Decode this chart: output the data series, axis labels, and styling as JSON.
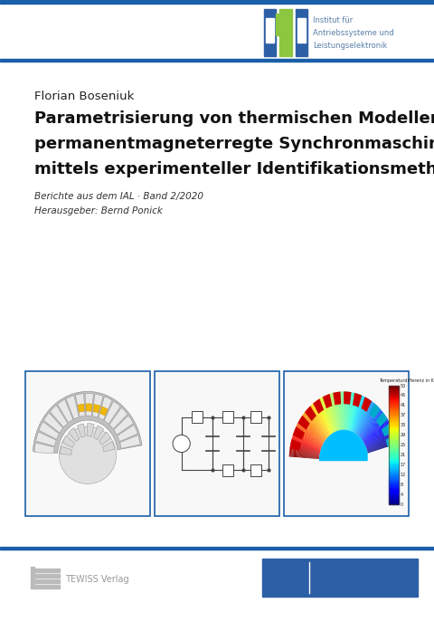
{
  "background_color": "#ffffff",
  "blue_line_color": "#1a5fa8",
  "ial_text_lines": [
    "Institut für",
    "Antriebssysteme und",
    "Leistungselektronik"
  ],
  "ial_text_color": "#5a7fa8",
  "author": "Florian Boseniuk",
  "title_line1": "Parametrisierung von thermischen Modellen für",
  "title_line2": "permanentmagneterregte Synchronmaschinen",
  "title_line3": "mittels experimenteller Identifikationsmethoden",
  "subtitle1": "Berichte aus dem IAL · Band 2/2020",
  "subtitle2": "Herausgeber: Bernd Ponick",
  "tewiss_color": "#aaaaaa",
  "leibniz_bg": "#2d5fa6",
  "image_border_color": "#1a5fa8"
}
